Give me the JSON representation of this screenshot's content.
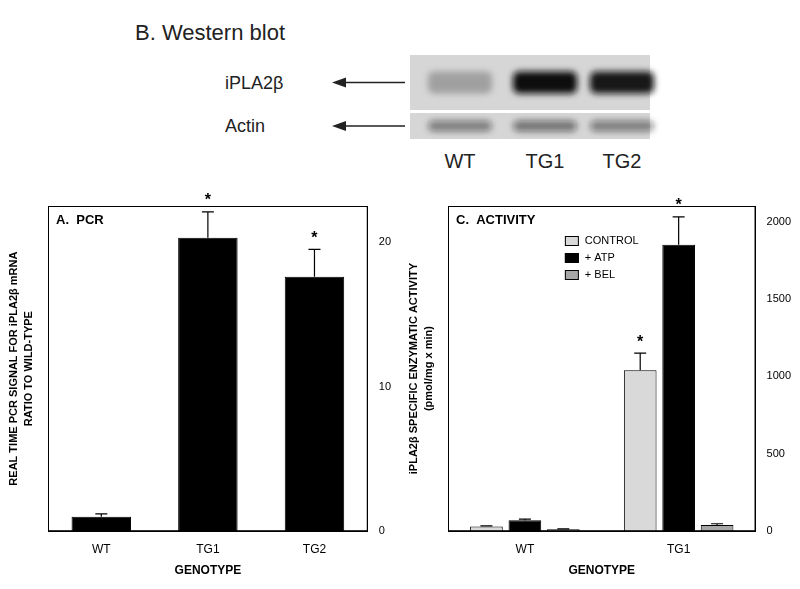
{
  "western_blot": {
    "title": "B. Western blot",
    "lanes": [
      "WT",
      "TG1",
      "TG2"
    ],
    "rows": [
      {
        "label": "iPLA2β",
        "intensity": [
          0.25,
          1.0,
          0.95
        ]
      },
      {
        "label": "Actin",
        "intensity": [
          0.45,
          0.5,
          0.45
        ]
      }
    ]
  },
  "chart_data": [
    {
      "type": "bar",
      "title": "A.  PCR",
      "x_label": "GENOTYPE",
      "y_label": [
        "REAL TIME PCR SIGNAL FOR iPLA2β mRNA",
        "RATIO TO WILD-TYPE"
      ],
      "categories": [
        "WT",
        "TG1",
        "TG2"
      ],
      "values": [
        1.0,
        20.3,
        17.6
      ],
      "errors": [
        0.2,
        1.8,
        1.9
      ],
      "color": "#000000",
      "ylim": [
        0,
        22.5
      ],
      "yticks": [
        0,
        10,
        20
      ],
      "grid": false,
      "annotations": [
        {
          "text": "*",
          "category": "TG1"
        },
        {
          "text": "*",
          "category": "TG2"
        }
      ]
    },
    {
      "type": "bar",
      "title": "C.  ACTIVITY",
      "x_label": "GENOTYPE",
      "y_label": [
        "iPLA2β SPECIFIC ENZYMATIC ACTIVITY",
        "(pmol/mg x min)"
      ],
      "categories": [
        "WT",
        "TG1"
      ],
      "series": [
        {
          "name": "CONTROL",
          "color": "#d9d9d9",
          "values": [
            30,
            1040
          ],
          "errors": [
            5,
            110
          ]
        },
        {
          "name": "+ ATP",
          "color": "#000000",
          "values": [
            70,
            1850
          ],
          "errors": [
            8,
            180
          ]
        },
        {
          "name": "+ BEL",
          "color": "#a6a6a6",
          "values": [
            12,
            40
          ],
          "errors": [
            3,
            8
          ]
        }
      ],
      "ylim": [
        0,
        2100
      ],
      "yticks": [
        0,
        500,
        1000,
        1500,
        2000
      ],
      "grid": false,
      "legend": "upper center",
      "annotations": [
        {
          "text": "*",
          "category": "TG1",
          "series": "CONTROL"
        },
        {
          "text": "*",
          "category": "TG1",
          "series": "+ ATP"
        }
      ]
    }
  ]
}
